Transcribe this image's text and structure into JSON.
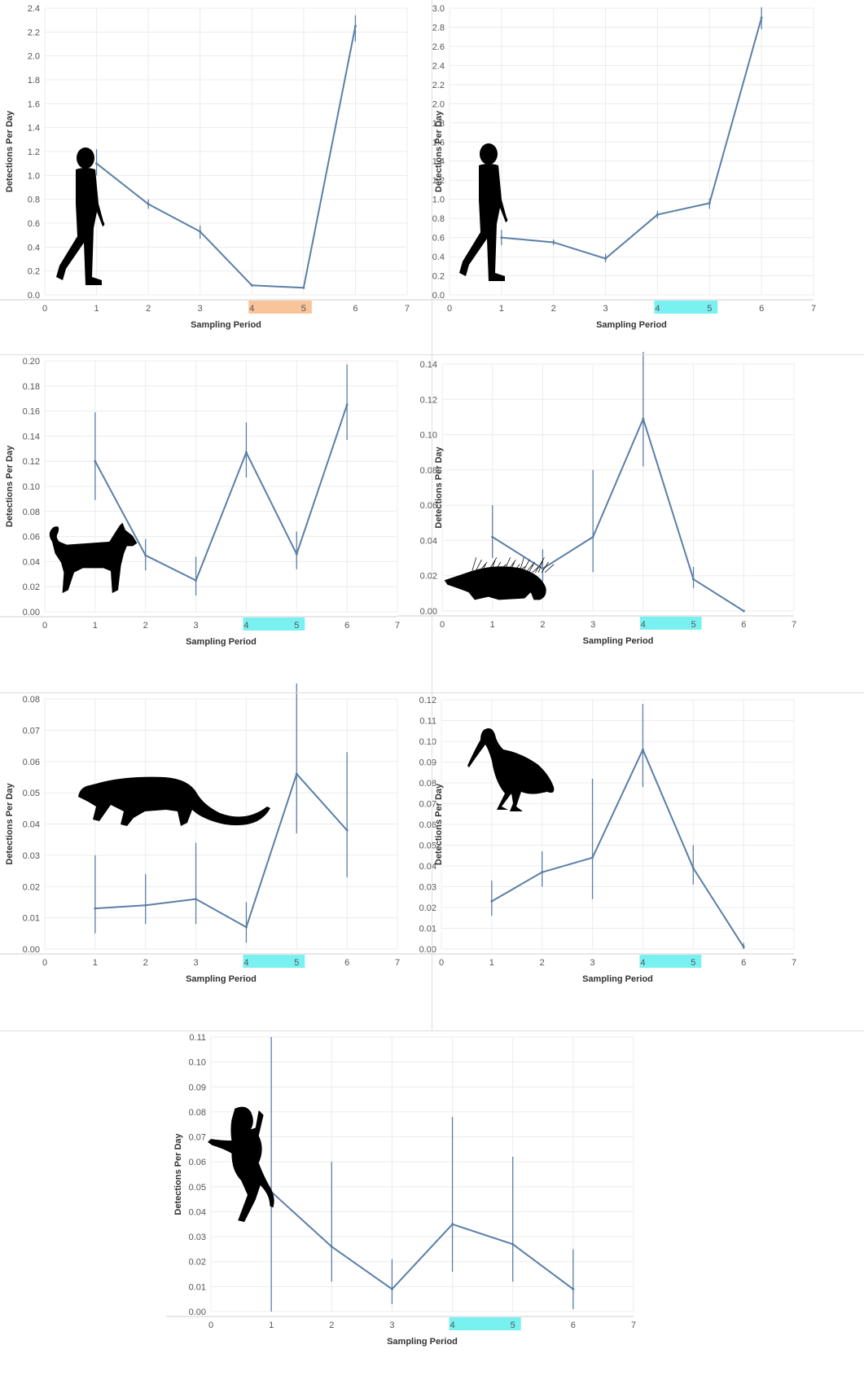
{
  "chart_data": [
    {
      "type": "line",
      "id": "human-a",
      "silhouette": "human-walking-icon",
      "xlabel": "Sampling Period",
      "ylabel": "Detections Per Day",
      "xlim": [
        0,
        7
      ],
      "xticks": [
        "0",
        "1",
        "2",
        "3",
        "4",
        "5",
        "6",
        "7"
      ],
      "ylim": [
        0,
        2.4
      ],
      "yticks": [
        "0.0",
        "0.2",
        "0.4",
        "0.6",
        "0.8",
        "1.0",
        "1.2",
        "1.4",
        "1.6",
        "1.8",
        "2.0",
        "2.2",
        "2.4"
      ],
      "highlight": {
        "from": 4,
        "to": 5,
        "color": "#f9c49a"
      },
      "x": [
        1,
        2,
        3,
        4,
        5,
        6
      ],
      "y": [
        1.1,
        0.76,
        0.53,
        0.08,
        0.06,
        2.25
      ],
      "err_low": [
        1.0,
        0.72,
        0.47,
        0.07,
        0.05,
        2.12
      ],
      "err_high": [
        1.22,
        0.8,
        0.58,
        0.09,
        0.07,
        2.34
      ],
      "grid": true
    },
    {
      "type": "line",
      "id": "human-b",
      "silhouette": "human-walking-icon",
      "xlabel": "Sampling Period",
      "ylabel": "Detections Per Day",
      "xlim": [
        0,
        7
      ],
      "xticks": [
        "0",
        "1",
        "2",
        "3",
        "4",
        "5",
        "6",
        "7"
      ],
      "ylim": [
        0,
        3.0
      ],
      "yticks": [
        "0.0",
        "0.2",
        "0.4",
        "0.6",
        "0.8",
        "1.0",
        "1.2",
        "1.4",
        "1.6",
        "1.8",
        "2.0",
        "2.2",
        "2.4",
        "2.6",
        "2.8",
        "3.0"
      ],
      "highlight": {
        "from": 4,
        "to": 5,
        "color": "#7af1f1"
      },
      "x": [
        1,
        2,
        3,
        4,
        5,
        6
      ],
      "y": [
        0.6,
        0.55,
        0.38,
        0.84,
        0.96,
        2.9
      ],
      "err_low": [
        0.52,
        0.52,
        0.34,
        0.8,
        0.9,
        2.78
      ],
      "err_high": [
        0.68,
        0.58,
        0.43,
        0.88,
        1.01,
        3.01
      ],
      "grid": true
    },
    {
      "type": "line",
      "id": "dog",
      "silhouette": "dog-icon",
      "xlabel": "Sampling Period",
      "ylabel": "Detections Per Day",
      "xlim": [
        0,
        7
      ],
      "xticks": [
        "0",
        "1",
        "2",
        "3",
        "4",
        "5",
        "6",
        "7"
      ],
      "ylim": [
        0,
        0.2
      ],
      "yticks": [
        "0.00",
        "0.02",
        "0.04",
        "0.06",
        "0.08",
        "0.10",
        "0.12",
        "0.14",
        "0.16",
        "0.18",
        "0.20"
      ],
      "highlight": {
        "from": 4,
        "to": 5,
        "color": "#7af1f1"
      },
      "x": [
        1,
        2,
        3,
        4,
        5,
        6
      ],
      "y": [
        0.12,
        0.045,
        0.025,
        0.127,
        0.046,
        0.165
      ],
      "err_low": [
        0.089,
        0.033,
        0.013,
        0.107,
        0.034,
        0.137
      ],
      "err_high": [
        0.159,
        0.058,
        0.044,
        0.151,
        0.064,
        0.197
      ],
      "grid": true
    },
    {
      "type": "line",
      "id": "porcupine",
      "silhouette": "porcupine-icon",
      "xlabel": "Sampling Period",
      "ylabel": "Detections Per Day",
      "xlim": [
        0,
        7
      ],
      "xticks": [
        "0",
        "1",
        "2",
        "3",
        "4",
        "5",
        "6",
        "7"
      ],
      "ylim": [
        0,
        0.14
      ],
      "yticks": [
        "0.00",
        "0.02",
        "0.04",
        "0.06",
        "0.08",
        "0.10",
        "0.12",
        "0.14"
      ],
      "highlight": {
        "from": 4,
        "to": 5,
        "color": "#7af1f1"
      },
      "x": [
        1,
        2,
        3,
        4,
        5,
        6
      ],
      "y": [
        0.042,
        0.024,
        0.042,
        0.109,
        0.018,
        0.0
      ],
      "err_low": [
        0.03,
        0.017,
        0.022,
        0.082,
        0.013,
        0.0
      ],
      "err_high": [
        0.06,
        0.035,
        0.08,
        0.147,
        0.025,
        0.0
      ],
      "grid": true
    },
    {
      "type": "line",
      "id": "cat",
      "silhouette": "civet-cat-icon",
      "xlabel": "Sampling Period",
      "ylabel": "Detections Per Day",
      "xlim": [
        0,
        7
      ],
      "xticks": [
        "0",
        "1",
        "2",
        "3",
        "4",
        "5",
        "6",
        "7"
      ],
      "ylim": [
        0,
        0.08
      ],
      "yticks": [
        "0.00",
        "0.01",
        "0.02",
        "0.03",
        "0.04",
        "0.05",
        "0.06",
        "0.07",
        "0.08"
      ],
      "highlight": {
        "from": 4,
        "to": 5,
        "color": "#7af1f1"
      },
      "x": [
        1,
        2,
        3,
        4,
        5,
        6
      ],
      "y": [
        0.013,
        0.014,
        0.016,
        0.007,
        0.056,
        0.038
      ],
      "err_low": [
        0.005,
        0.008,
        0.008,
        0.002,
        0.037,
        0.023
      ],
      "err_high": [
        0.03,
        0.024,
        0.034,
        0.015,
        0.085,
        0.063
      ],
      "grid": true
    },
    {
      "type": "line",
      "id": "ibis",
      "silhouette": "ibis-icon",
      "xlabel": "Sampling Period",
      "ylabel": "Detections Per Day",
      "xlim": [
        0,
        7
      ],
      "xticks": [
        "0",
        "1",
        "2",
        "3",
        "4",
        "5",
        "6",
        "7"
      ],
      "ylim": [
        0,
        0.12
      ],
      "yticks": [
        "0.00",
        "0.01",
        "0.02",
        "0.03",
        "0.04",
        "0.05",
        "0.06",
        "0.07",
        "0.08",
        "0.09",
        "0.10",
        "0.11",
        "0.12"
      ],
      "highlight": {
        "from": 4,
        "to": 5,
        "color": "#7af1f1"
      },
      "x": [
        1,
        2,
        3,
        4,
        5,
        6
      ],
      "y": [
        0.023,
        0.037,
        0.044,
        0.096,
        0.039,
        0.001
      ],
      "err_low": [
        0.016,
        0.03,
        0.024,
        0.078,
        0.031,
        0.0
      ],
      "err_high": [
        0.033,
        0.047,
        0.082,
        0.118,
        0.05,
        0.003
      ],
      "grid": true
    },
    {
      "type": "line",
      "id": "monkey",
      "silhouette": "monkey-icon",
      "xlabel": "Sampling Period",
      "ylabel": "Detections Per Day",
      "xlim": [
        0,
        7
      ],
      "xticks": [
        "0",
        "1",
        "2",
        "3",
        "4",
        "5",
        "6",
        "7"
      ],
      "ylim": [
        0,
        0.11
      ],
      "yticks": [
        "0.00",
        "0.01",
        "0.02",
        "0.03",
        "0.04",
        "0.05",
        "0.06",
        "0.07",
        "0.08",
        "0.09",
        "0.10",
        "0.11"
      ],
      "highlight": {
        "from": 4,
        "to": 5,
        "color": "#7af1f1"
      },
      "x": [
        1,
        2,
        3,
        4,
        5,
        6
      ],
      "y": [
        0.048,
        0.026,
        0.009,
        0.035,
        0.027,
        0.009
      ],
      "err_low": [
        0.0,
        0.012,
        0.003,
        0.016,
        0.012,
        0.001
      ],
      "err_high": [
        0.11,
        0.06,
        0.021,
        0.078,
        0.062,
        0.025
      ],
      "grid": true
    }
  ]
}
